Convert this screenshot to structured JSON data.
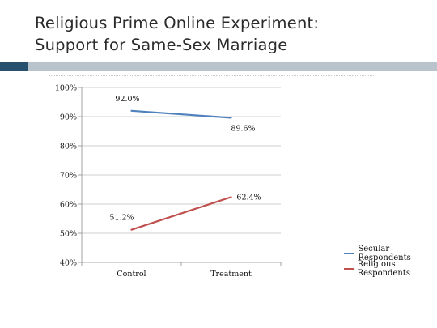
{
  "slide": {
    "title_line1": "Religious Prime Online Experiment:",
    "title_line2": "Support for Same-Sex Marriage"
  },
  "colors": {
    "title_bar": "#b9c3cc",
    "title_bar_accent": "#27506f",
    "secular_line": "#4f81bd",
    "religious_line": "#c0504d",
    "axis": "#8c8c8c",
    "gridline": "#bfbfbf"
  },
  "chart_data": {
    "type": "line",
    "categories": [
      "Control",
      "Treatment"
    ],
    "series": [
      {
        "name": "Secular Respondents",
        "values": [
          92.0,
          89.6
        ],
        "labels": [
          "92.0%",
          "89.6%"
        ],
        "color": "#4f81bd"
      },
      {
        "name": "Religious Respondents",
        "values": [
          51.2,
          62.4
        ],
        "labels": [
          "51.2%",
          "62.4%"
        ],
        "color": "#c0504d"
      }
    ],
    "y_ticks": [
      "40%",
      "50%",
      "60%",
      "70%",
      "80%",
      "90%",
      "100%"
    ],
    "ylim": [
      40,
      100
    ],
    "grid": true,
    "legend_position": "right",
    "title": "",
    "xlabel": "",
    "ylabel": ""
  }
}
